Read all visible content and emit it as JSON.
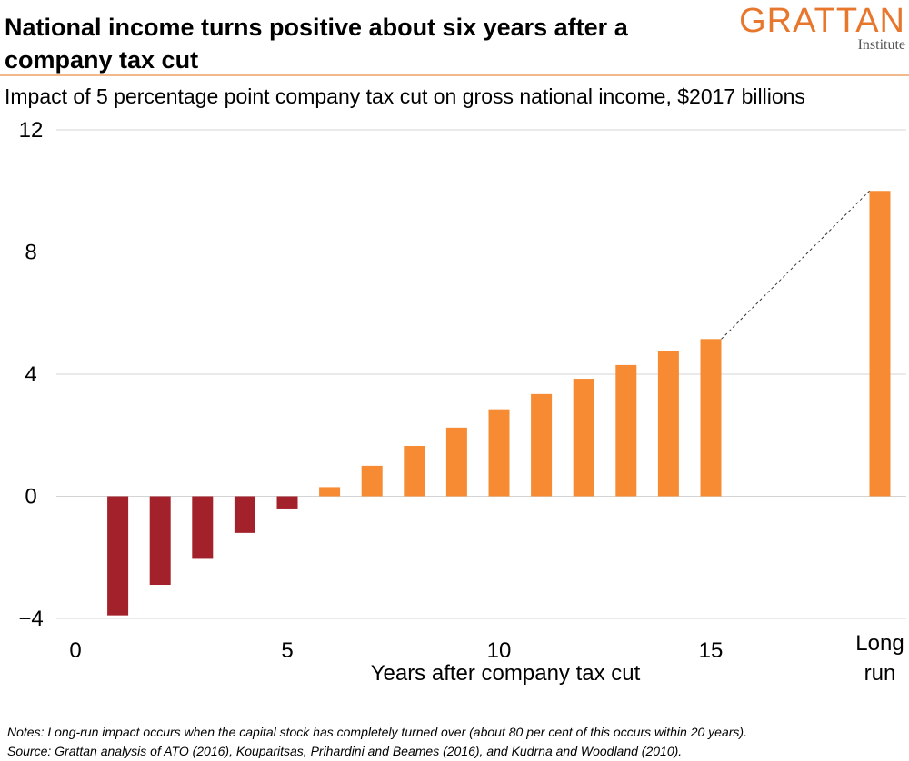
{
  "header": {
    "title": "National income turns positive about six years after a company tax cut",
    "subtitle": "Impact of 5 percentage point company tax cut on gross national income, $2017 billions"
  },
  "logo": {
    "name": "GRATTAN",
    "sub": "Institute"
  },
  "footer": {
    "notes": "Notes: Long-run impact occurs when the capital stock has completely turned over (about 80 per cent of this occurs within 20 years).",
    "source": "Source: Grattan analysis of ATO (2016),  Kouparitsas, Prihardini and Beames (2016),  and Kudrna and Woodland (2010)."
  },
  "colors": {
    "negative": "#a3212a",
    "positive": "#f68b33",
    "grid": "#d4d4d4",
    "brand": "#e8772e"
  },
  "chart_data": {
    "type": "bar",
    "title": "National income turns positive about six years after a company tax cut",
    "subtitle": "Impact of 5 percentage point company tax cut on gross national income, $2017 billions",
    "xlabel": "Years after company tax cut",
    "ylabel": "",
    "ylim": [
      -4,
      12
    ],
    "yticks": [
      -4,
      0,
      4,
      8,
      12
    ],
    "ytick_labels": [
      "−4",
      "0",
      "4",
      "8",
      "12"
    ],
    "xlim": [
      0,
      15
    ],
    "xticks": [
      0,
      5,
      10,
      15
    ],
    "xtick_labels": [
      "0",
      "5",
      "10",
      "15"
    ],
    "grid": true,
    "years": [
      1,
      2,
      3,
      4,
      5,
      6,
      7,
      8,
      9,
      10,
      11,
      12,
      13,
      14,
      15
    ],
    "values": [
      -3.9,
      -2.9,
      -2.05,
      -1.2,
      -0.4,
      0.3,
      1.0,
      1.65,
      2.25,
      2.85,
      3.35,
      3.85,
      4.3,
      4.75,
      5.15
    ],
    "long_run": {
      "label": "Long run",
      "value": 10.0
    },
    "connector": "dashed line from year 15 to long run"
  }
}
